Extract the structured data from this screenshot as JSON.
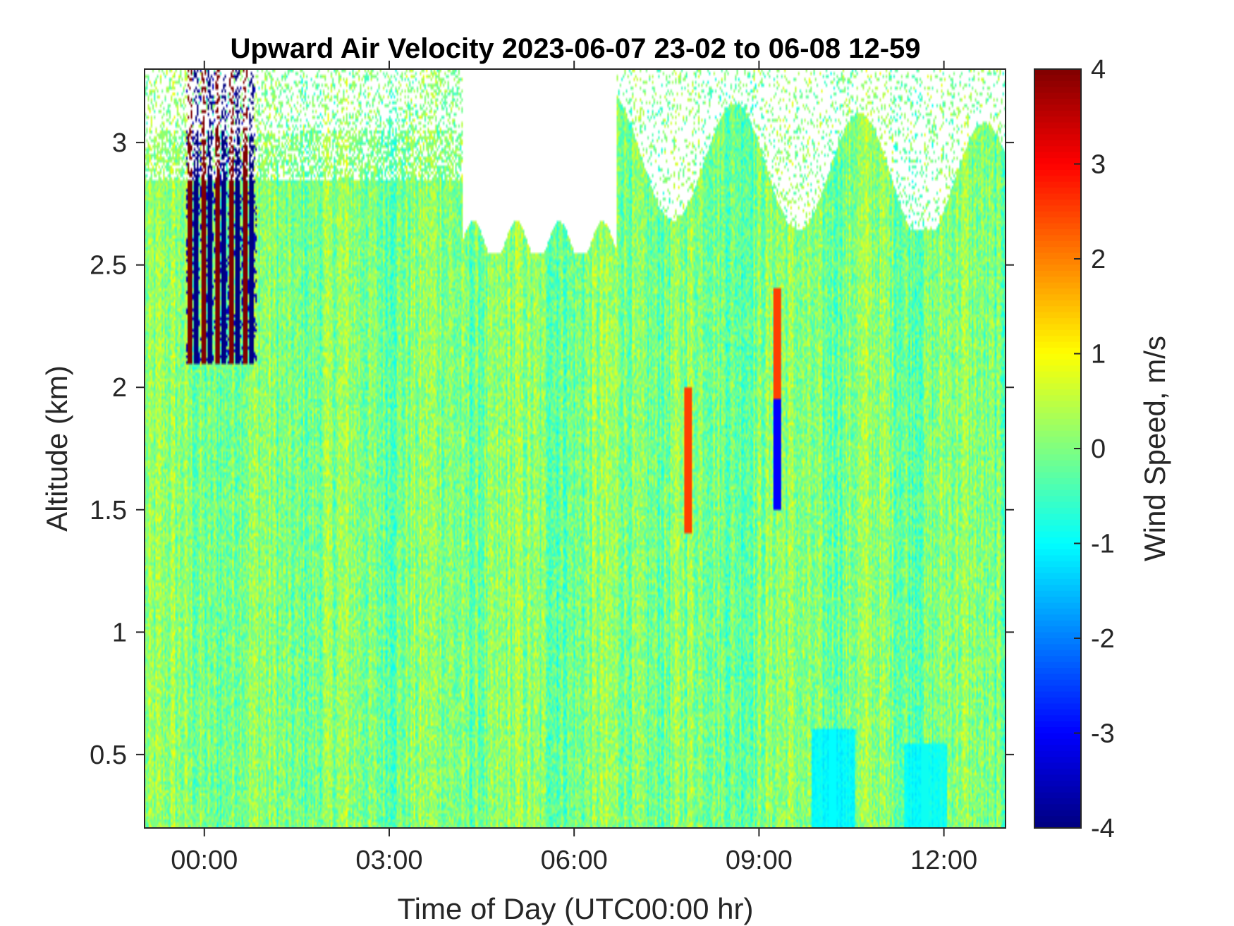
{
  "chart_data": {
    "type": "heatmap",
    "title": "Upward Air Velocity 2023-06-07 23-02 to 06-08 12-59",
    "xlabel": "Time of Day (UTC00:00 hr)",
    "ylabel": "Altitude (km)",
    "colorbar_label": "Wind Speed, m/s",
    "x_range_hours": [
      -0.97,
      13.0
    ],
    "y_range_km": [
      0.2,
      3.3
    ],
    "x_ticks": [
      {
        "value": 0,
        "label": "00:00"
      },
      {
        "value": 3,
        "label": "03:00"
      },
      {
        "value": 6,
        "label": "06:00"
      },
      {
        "value": 9,
        "label": "09:00"
      },
      {
        "value": 12,
        "label": "12:00"
      }
    ],
    "y_ticks": [
      {
        "value": 0.5,
        "label": "0.5"
      },
      {
        "value": 1,
        "label": "1"
      },
      {
        "value": 1.5,
        "label": "1.5"
      },
      {
        "value": 2,
        "label": "2"
      },
      {
        "value": 2.5,
        "label": "2.5"
      },
      {
        "value": 3,
        "label": "3"
      }
    ],
    "colorbar_ticks": [
      {
        "value": 4,
        "label": "4"
      },
      {
        "value": 3,
        "label": "3"
      },
      {
        "value": 2,
        "label": "2"
      },
      {
        "value": 1,
        "label": "1"
      },
      {
        "value": 0,
        "label": "0"
      },
      {
        "value": -1,
        "label": "-1"
      },
      {
        "value": -2,
        "label": "-2"
      },
      {
        "value": -3,
        "label": "-3"
      },
      {
        "value": -4,
        "label": "-4"
      }
    ],
    "clim": [
      -4,
      4
    ],
    "colormap": "jet",
    "grid": false,
    "background_value": 0.0,
    "features": [
      {
        "name": "strong updraft/downdraft band",
        "t_start": -0.3,
        "t_end": 0.85,
        "alt_min": 2.1,
        "alt_max": 3.3,
        "value_range": [
          -4,
          4
        ]
      },
      {
        "name": "updraft streak",
        "t": 7.85,
        "alt_min": 1.4,
        "alt_max": 2.0,
        "value": 2.5
      },
      {
        "name": "mixed streak",
        "t": 9.3,
        "alt_min": 1.5,
        "alt_max": 2.4,
        "value_range": [
          -3,
          2.5
        ]
      },
      {
        "name": "near-surface downdraft",
        "t": 10.2,
        "alt_min": 0.2,
        "alt_max": 0.6,
        "value": -1.0
      },
      {
        "name": "near-surface downdraft",
        "t": 11.7,
        "alt_min": 0.2,
        "alt_max": 0.55,
        "value": -0.9
      }
    ],
    "no_data_regions": [
      {
        "t_start": -0.97,
        "t_end": 4.7,
        "alt_min": 2.6,
        "alt_max": 3.3,
        "pattern": "patchy"
      },
      {
        "t_start": 4.2,
        "t_end": 6.7,
        "alt_min": 2.55,
        "alt_max": 3.3,
        "pattern": "solid"
      },
      {
        "t_start": 6.7,
        "t_end": 13.0,
        "alt_min": 2.65,
        "alt_max": 3.3,
        "pattern": "ragged top"
      }
    ]
  }
}
